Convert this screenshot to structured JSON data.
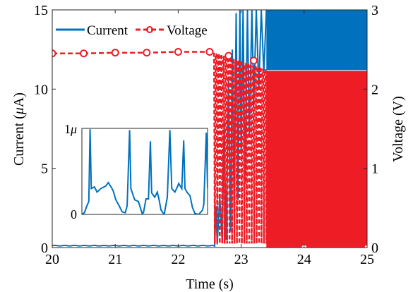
{
  "chart_data": {
    "type": "line",
    "xlabel": "Time (s)",
    "ylabel_left_prefix": "Current (",
    "ylabel_left_mu": "μ",
    "ylabel_left_suffix": "A)",
    "ylabel_right": "Voltage (V)",
    "xlim": [
      20,
      25
    ],
    "ylim_left": [
      0,
      15
    ],
    "ylim_right": [
      0,
      3
    ],
    "x_ticks": [
      "20",
      "21",
      "22",
      "23",
      "24",
      "25"
    ],
    "y_ticks_left": [
      "0",
      "5",
      "10",
      "15"
    ],
    "y_ticks_right": [
      "0",
      "1",
      "2",
      "3"
    ],
    "legend_placement": "top-left",
    "grid": false,
    "series": [
      {
        "name": "Current",
        "axis": "left",
        "color": "#0072BD",
        "style": "solid",
        "x": [
          20,
          20.5,
          21,
          21.5,
          22,
          22.5,
          22.6,
          22.7,
          22.8,
          22.9,
          23.0,
          23.1,
          23.2,
          23.3,
          23.4,
          25
        ],
        "y": [
          0.12,
          0.12,
          0.13,
          0.12,
          0.13,
          0.13,
          2.5,
          10,
          13,
          14.7,
          15,
          15,
          15,
          15,
          11.2,
          11.2
        ]
      },
      {
        "name": "Voltage",
        "axis": "right",
        "color": "#EE1C25",
        "style": "dashed",
        "marker": "circle",
        "x": [
          20,
          20.5,
          21,
          21.5,
          22,
          22.5,
          22.6,
          22.8,
          23.0,
          23.2,
          23.4,
          24,
          25
        ],
        "y": [
          2.45,
          2.45,
          2.46,
          2.46,
          2.47,
          2.47,
          2.45,
          2.42,
          2.39,
          2.36,
          2.23,
          0,
          0
        ]
      }
    ],
    "inset": {
      "y_ticks": [
        "0",
        "1μ"
      ],
      "series_color": "#0072BD",
      "ylim": [
        0,
        1
      ]
    }
  }
}
